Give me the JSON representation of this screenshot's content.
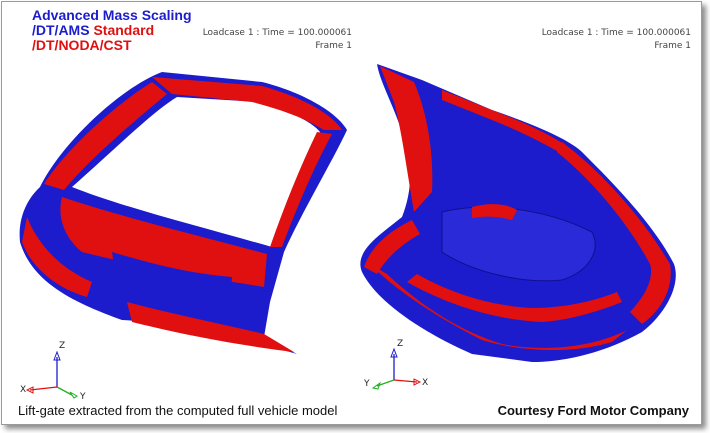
{
  "legend": {
    "line1": "Advanced Mass Scaling",
    "line2_prefix": "/DT/AMS",
    "line2_suffix": "Standard",
    "line3": "/DT/NODA/CST"
  },
  "viewports": [
    {
      "loadcase": "Loadcase 1 : Time = 100.000061",
      "frame": "Frame 1"
    },
    {
      "loadcase": "Loadcase 1 : Time = 100.000061",
      "frame": "Frame 1"
    }
  ],
  "triads": [
    {
      "z": "Z",
      "x": "X",
      "y": "Y"
    },
    {
      "z": "Z",
      "x": "X",
      "y": "Y"
    }
  ],
  "caption": "Lift-gate extracted from the computed full vehicle model",
  "credit": "Courtesy Ford Motor Company",
  "colors": {
    "blue": "#1c1ccc",
    "red": "#e01010"
  }
}
